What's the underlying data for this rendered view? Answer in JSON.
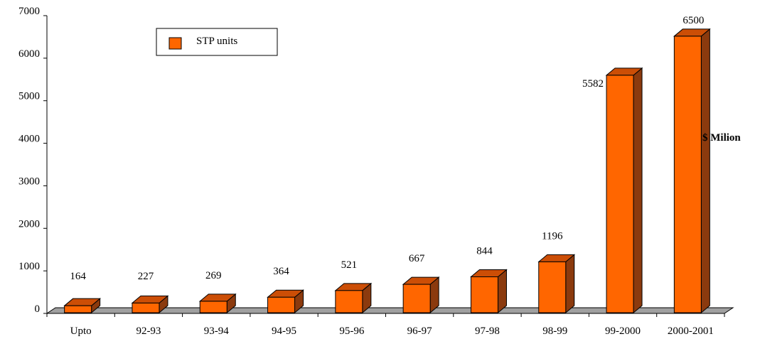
{
  "chart_data": {
    "type": "bar",
    "title": "",
    "xlabel": "",
    "ylabel": "$ Milion",
    "categories": [
      "Upto",
      "92-93",
      "93-94",
      "94-95",
      "95-96",
      "96-97",
      "97-98",
      "98-99",
      "99-2000",
      "2000-2001"
    ],
    "series": [
      {
        "name": "STP units",
        "values": [
          164,
          227,
          269,
          364,
          521,
          667,
          844,
          1196,
          5582,
          6500
        ],
        "labels": [
          "164",
          "227",
          "269",
          "364",
          "521",
          "667",
          "844",
          "1196",
          "5582",
          "6500"
        ]
      }
    ],
    "y_ticks": [
      "0",
      "1000",
      "2000",
      "3000",
      "4000",
      "5000",
      "6000",
      "7000"
    ],
    "ylim": [
      0,
      7000
    ],
    "grid": false,
    "legend_position": "top-left",
    "style": "3d-bar",
    "colors": {
      "bar_front": "#FF6600",
      "bar_top": "#CC4E06",
      "bar_side": "#8B3A0E",
      "floor": "#A0A0A0",
      "axis": "#000000"
    }
  }
}
